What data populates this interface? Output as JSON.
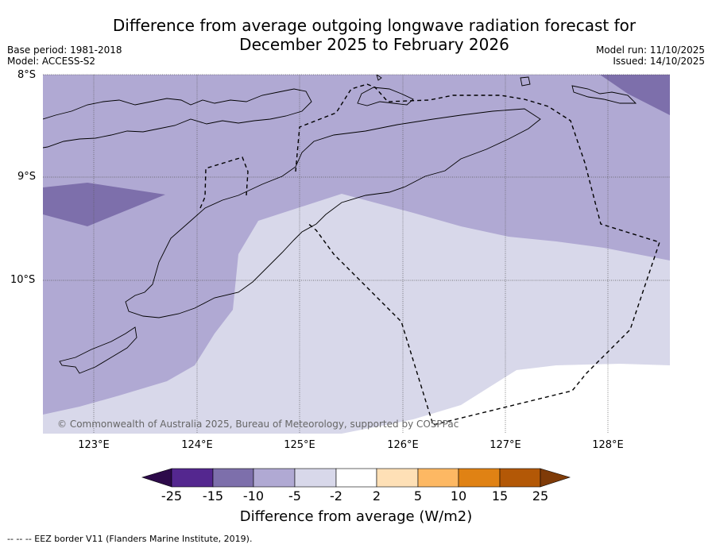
{
  "title": {
    "line1": "Difference from average outgoing longwave radiation forecast for",
    "line2": "December 2025 to February 2026"
  },
  "meta": {
    "base_period": "Base period: 1981-2018",
    "model": "Model: ACCESS-S2",
    "model_run": "Model run: 11/10/2025",
    "issued": "Issued: 14/10/2025"
  },
  "axes": {
    "lat_labels": [
      "8°S",
      "9°S",
      "10°S"
    ],
    "lon_labels": [
      "123°E",
      "124°E",
      "125°E",
      "126°E",
      "127°E",
      "128°E"
    ]
  },
  "copyright": "© Commonwealth of Australia 2025, Bureau of Meteorology, supported by COSPPac",
  "colorbar": {
    "label": "Difference from average (W/m2)",
    "ticks": [
      "-25",
      "-15",
      "-10",
      "-5",
      "-2",
      "2",
      "5",
      "10",
      "15",
      "25"
    ],
    "colors": {
      "below": "#2d0a4a",
      "c1": "#54278f",
      "c2": "#7d6fab",
      "c3": "#b0a9d3",
      "c4": "#d8d8ea",
      "c5": "#ffffff",
      "c6": "#fee0b6",
      "c7": "#fdb863",
      "c8": "#e08214",
      "c9": "#b35806",
      "above": "#7f3b08"
    }
  },
  "footnote": "--  --  -- EEZ border V11 (Flanders Marine Institute, 2019)."
}
